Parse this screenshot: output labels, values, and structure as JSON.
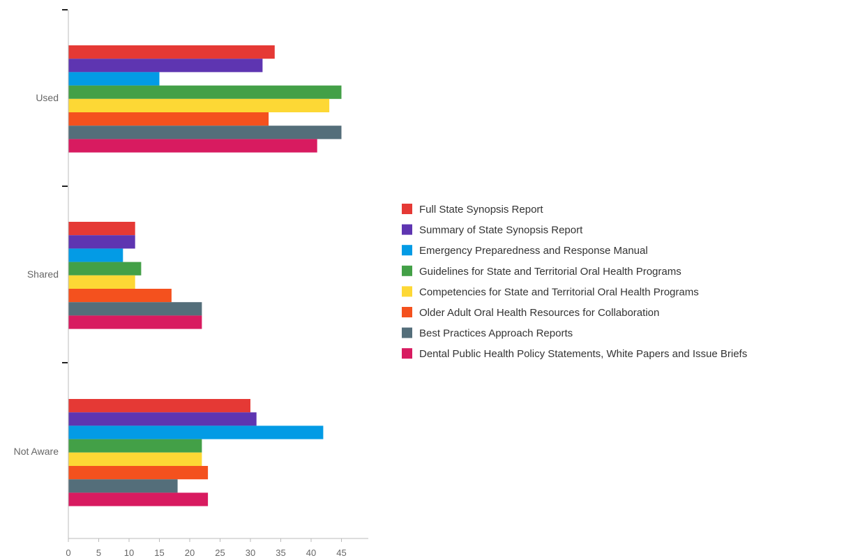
{
  "chart_data": {
    "type": "bar",
    "orientation": "horizontal",
    "title": "",
    "xlabel": "",
    "ylabel": "",
    "categories": [
      "Used",
      "Shared",
      "Not Aware"
    ],
    "xlim": [
      0,
      49
    ],
    "xticks": [
      0,
      5,
      10,
      15,
      20,
      25,
      30,
      35,
      40,
      45
    ],
    "grid": false,
    "legend_position": "right",
    "series": [
      {
        "name": "Full State Synopsis Report",
        "color": "#e53935",
        "values": [
          34,
          11,
          30
        ]
      },
      {
        "name": "Summary of State Synopsis Report",
        "color": "#5e35b1",
        "values": [
          32,
          11,
          31
        ]
      },
      {
        "name": "Emergency Preparedness and Response Manual",
        "color": "#039be5",
        "values": [
          15,
          9,
          42
        ]
      },
      {
        "name": "Guidelines for State and Territorial Oral Health Programs",
        "color": "#43a047",
        "values": [
          45,
          12,
          22
        ]
      },
      {
        "name": "Competencies for State and Territorial Oral Health Programs",
        "color": "#fdd835",
        "values": [
          43,
          11,
          22
        ]
      },
      {
        "name": "Older Adult Oral Health Resources for Collaboration",
        "color": "#f4511e",
        "values": [
          33,
          17,
          23
        ]
      },
      {
        "name": "Best Practices Approach Reports",
        "color": "#546e7a",
        "values": [
          45,
          22,
          18
        ]
      },
      {
        "name": "Dental Public Health Policy Statements, White Papers and Issue Briefs",
        "color": "#d81b60",
        "values": [
          41,
          22,
          23
        ]
      }
    ]
  }
}
